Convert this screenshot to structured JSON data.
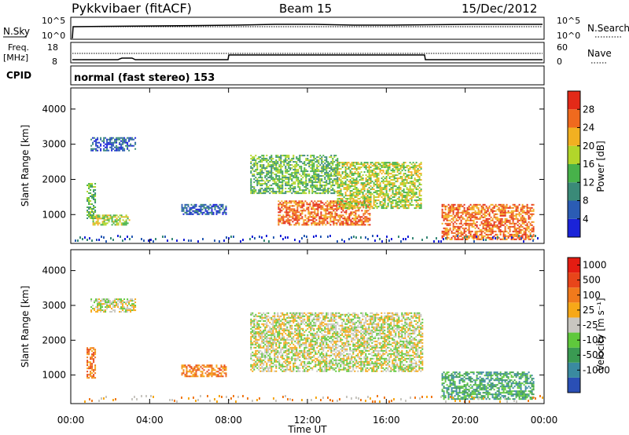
{
  "header": {
    "title": "Pykkvibaer (fitACF)",
    "beam": "Beam 15",
    "date": "15/Dec/2012"
  },
  "top_panels": {
    "nsky_label": "N.Sky",
    "nsky_ticks": [
      "10^5",
      "10^0"
    ],
    "nsearch_label": "N.Search",
    "nsearch_ticks": [
      "10^5",
      "10^0"
    ],
    "freq_label_1": "Freq.",
    "freq_label_2": "[MHz]",
    "freq_ticks": [
      "18",
      "8"
    ],
    "nave_label": "Nave",
    "nave_ticks": [
      "60",
      "0"
    ],
    "cpid_label": "CPID",
    "cpid_text": "normal (fast stereo) 153"
  },
  "x_axis": {
    "title": "Time UT",
    "ticks": [
      "00:00",
      "04:00",
      "08:00",
      "12:00",
      "16:00",
      "20:00",
      "00:00"
    ],
    "range_hours": [
      0,
      24
    ]
  },
  "y_axis": {
    "title": "Slant Range [km]",
    "ticks": [
      "1000",
      "2000",
      "3000",
      "4000"
    ],
    "range_km": [
      180,
      4600
    ]
  },
  "chart_data": [
    {
      "type": "heatmap",
      "panel": "power",
      "xlabel": "Time UT",
      "ylabel": "Slant Range [km]",
      "colorbar": {
        "title": "Power [dB]",
        "ticks": [
          "4",
          "8",
          "12",
          "16",
          "20",
          "24",
          "28"
        ],
        "colors": [
          "#1a23d8",
          "#2b5cb4",
          "#3a8a78",
          "#47b24a",
          "#b2d62a",
          "#f2b021",
          "#f06a1e",
          "#e32a18"
        ]
      },
      "regions": [
        {
          "t": [
            0.8,
            1.2
          ],
          "r": [
            900,
            1900
          ],
          "level": 3
        },
        {
          "t": [
            1.0,
            3.3
          ],
          "r": [
            2800,
            3200
          ],
          "level": 1
        },
        {
          "t": [
            1.1,
            3.0
          ],
          "r": [
            700,
            1000
          ],
          "level": 4
        },
        {
          "t": [
            5.6,
            7.9
          ],
          "r": [
            1000,
            1300
          ],
          "level": 1
        },
        {
          "t": [
            9.1,
            13.5
          ],
          "r": [
            1600,
            2700
          ],
          "level": 3
        },
        {
          "t": [
            10.5,
            15.2
          ],
          "r": [
            700,
            1400
          ],
          "level": 6
        },
        {
          "t": [
            13.5,
            17.8
          ],
          "r": [
            1200,
            2500
          ],
          "level": 4
        },
        {
          "t": [
            18.8,
            23.5
          ],
          "r": [
            300,
            1300
          ],
          "level": 6
        }
      ]
    },
    {
      "type": "heatmap",
      "panel": "velocity",
      "xlabel": "Time UT",
      "ylabel": "Slant Range [km]",
      "colorbar": {
        "title": "Velocity [m s⁻¹]",
        "ticks": [
          "1000",
          "500",
          "100",
          "25",
          "-25",
          "-100",
          "-500",
          "-1000"
        ],
        "colors": [
          "#2a4fb5",
          "#3a8aa0",
          "#3a9a52",
          "#5fc83c",
          "#c8c6c0",
          "#f6a818",
          "#f07a1c",
          "#e8451a",
          "#e41c12"
        ]
      },
      "regions": [
        {
          "t": [
            0.8,
            1.2
          ],
          "r": [
            900,
            1800
          ],
          "level": 6
        },
        {
          "t": [
            1.0,
            3.3
          ],
          "r": [
            2800,
            3200
          ],
          "level": 4
        },
        {
          "t": [
            5.6,
            7.9
          ],
          "r": [
            950,
            1300
          ],
          "level": 6
        },
        {
          "t": [
            9.1,
            17.8
          ],
          "r": [
            1100,
            2800
          ],
          "level": 4
        },
        {
          "t": [
            18.8,
            23.5
          ],
          "r": [
            300,
            1100
          ],
          "level": 2
        }
      ]
    }
  ]
}
